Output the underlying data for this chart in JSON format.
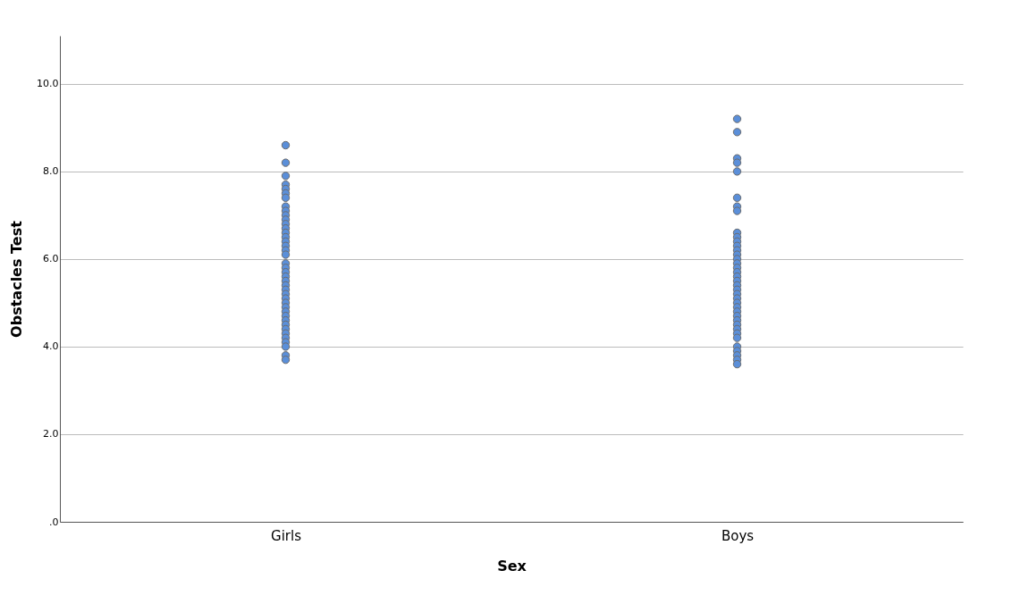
{
  "chart_data": {
    "type": "scatter",
    "xlabel": "Sex",
    "ylabel": "Obstacles Test",
    "categories": [
      "Girls",
      "Boys"
    ],
    "series": [
      {
        "color": "#5b8fd9",
        "x": [
          "Girls",
          "Girls",
          "Girls",
          "Girls",
          "Girls",
          "Girls",
          "Girls",
          "Girls",
          "Girls",
          "Girls",
          "Girls",
          "Girls",
          "Girls",
          "Girls",
          "Girls",
          "Girls",
          "Girls",
          "Girls",
          "Girls",
          "Girls",
          "Girls",
          "Girls",
          "Girls",
          "Girls",
          "Girls",
          "Girls",
          "Girls",
          "Girls",
          "Girls",
          "Girls",
          "Girls",
          "Girls",
          "Girls",
          "Girls",
          "Girls",
          "Girls",
          "Girls",
          "Girls",
          "Girls",
          "Girls",
          "Girls"
        ],
        "values": [
          8.6,
          8.2,
          7.9,
          7.7,
          7.6,
          7.5,
          7.4,
          7.2,
          7.1,
          7.0,
          6.9,
          6.8,
          6.7,
          6.6,
          6.5,
          6.4,
          6.3,
          6.2,
          6.1,
          5.9,
          5.8,
          5.7,
          5.6,
          5.5,
          5.4,
          5.3,
          5.2,
          5.1,
          5.0,
          4.9,
          4.8,
          4.7,
          4.6,
          4.5,
          4.4,
          4.3,
          4.2,
          4.1,
          4.0,
          3.8,
          3.7
        ]
      },
      {
        "color": "#5b8fd9",
        "x": [
          "Boys",
          "Boys",
          "Boys",
          "Boys",
          "Boys",
          "Boys",
          "Boys",
          "Boys",
          "Boys",
          "Boys",
          "Boys",
          "Boys",
          "Boys",
          "Boys",
          "Boys",
          "Boys",
          "Boys",
          "Boys",
          "Boys",
          "Boys",
          "Boys",
          "Boys",
          "Boys",
          "Boys",
          "Boys",
          "Boys",
          "Boys",
          "Boys",
          "Boys",
          "Boys",
          "Boys",
          "Boys",
          "Boys",
          "Boys",
          "Boys",
          "Boys",
          "Boys",
          "Boys"
        ],
        "values": [
          9.2,
          8.9,
          8.3,
          8.2,
          8.0,
          7.4,
          7.2,
          7.1,
          6.6,
          6.5,
          6.4,
          6.3,
          6.2,
          6.1,
          6.0,
          5.9,
          5.8,
          5.7,
          5.6,
          5.5,
          5.4,
          5.3,
          5.2,
          5.1,
          5.0,
          4.9,
          4.8,
          4.7,
          4.6,
          4.5,
          4.4,
          4.3,
          4.2,
          4.0,
          3.9,
          3.8,
          3.7,
          3.6
        ]
      }
    ],
    "ylim": [
      0,
      11.1
    ],
    "yticks": [
      {
        "value": 0,
        "label": ".0"
      },
      {
        "value": 2,
        "label": "2.0"
      },
      {
        "value": 4,
        "label": "4.0"
      },
      {
        "value": 6,
        "label": "6.0"
      },
      {
        "value": 8,
        "label": "8.0"
      },
      {
        "value": 10,
        "label": "10.0"
      }
    ],
    "grid": "y",
    "marker": "circle",
    "legend": false
  }
}
